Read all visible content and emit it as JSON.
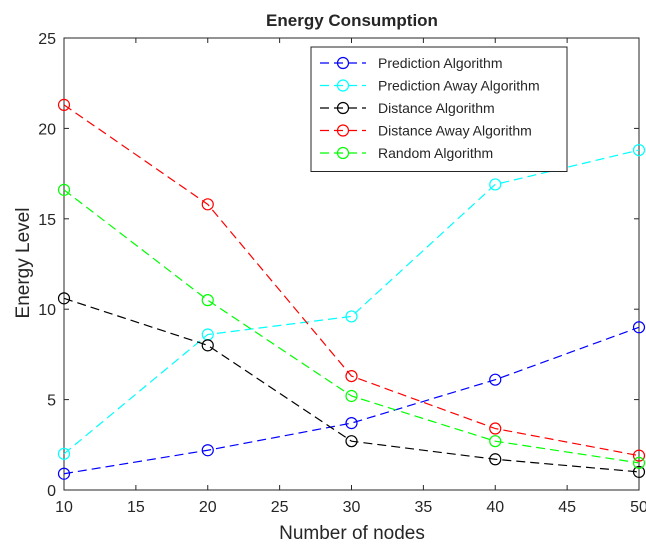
{
  "chart_data": {
    "type": "line",
    "title": "Energy Consumption",
    "xlabel": "Number of nodes",
    "ylabel": "Energy Level",
    "xlim": [
      10,
      50
    ],
    "ylim": [
      0,
      25
    ],
    "x_ticks": [
      10,
      15,
      20,
      25,
      30,
      35,
      40,
      45,
      50
    ],
    "y_ticks": [
      0,
      5,
      10,
      15,
      20,
      25
    ],
    "x": [
      10,
      20,
      30,
      40,
      50
    ],
    "grid": false,
    "legend_position": "top-right",
    "series": [
      {
        "name": "Prediction Algorithm",
        "color": "#0000ff",
        "values": [
          0.9,
          2.2,
          3.7,
          6.1,
          9.0
        ]
      },
      {
        "name": "Prediction Away Algorithm",
        "color": "#00ffff",
        "values": [
          2.0,
          8.6,
          9.6,
          16.9,
          18.8
        ]
      },
      {
        "name": "Distance Algorithm",
        "color": "#000000",
        "values": [
          10.6,
          8.0,
          2.7,
          1.7,
          1.0
        ]
      },
      {
        "name": "Distance Away Algorithm",
        "color": "#ff0000",
        "values": [
          21.3,
          15.8,
          6.3,
          3.4,
          1.9
        ]
      },
      {
        "name": "Random Algorithm",
        "color": "#00ff00",
        "values": [
          16.6,
          10.5,
          5.2,
          2.7,
          1.5
        ]
      }
    ]
  }
}
